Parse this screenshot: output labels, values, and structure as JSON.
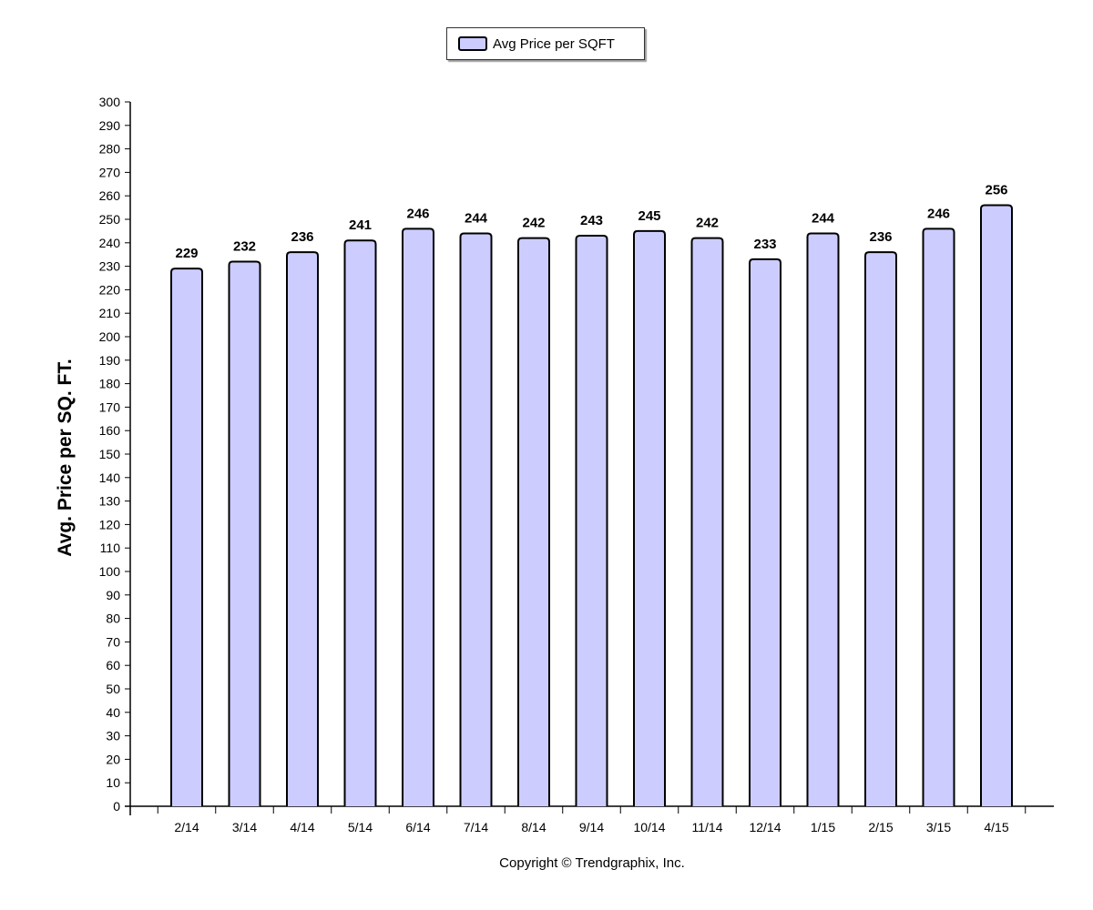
{
  "chart_data": {
    "type": "bar",
    "categories": [
      "2/14",
      "3/14",
      "4/14",
      "5/14",
      "6/14",
      "7/14",
      "8/14",
      "9/14",
      "10/14",
      "11/14",
      "12/14",
      "1/15",
      "2/15",
      "3/15",
      "4/15"
    ],
    "series": [
      {
        "name": "Avg Price per SQFT",
        "values": [
          229,
          232,
          236,
          241,
          246,
          244,
          242,
          243,
          245,
          242,
          233,
          244,
          236,
          246,
          256
        ]
      }
    ],
    "xlabel": "",
    "ylabel": "Avg. Price per SQ. FT.",
    "ylim": [
      0,
      300
    ],
    "ytick_step": 10,
    "legend_position": "top-center",
    "grid": false,
    "bar_color": "#ccccff",
    "bar_outline": "#000000"
  },
  "legend": {
    "label": "Avg Price per SQFT"
  },
  "footer": {
    "copyright": "Copyright © Trendgraphix, Inc."
  }
}
